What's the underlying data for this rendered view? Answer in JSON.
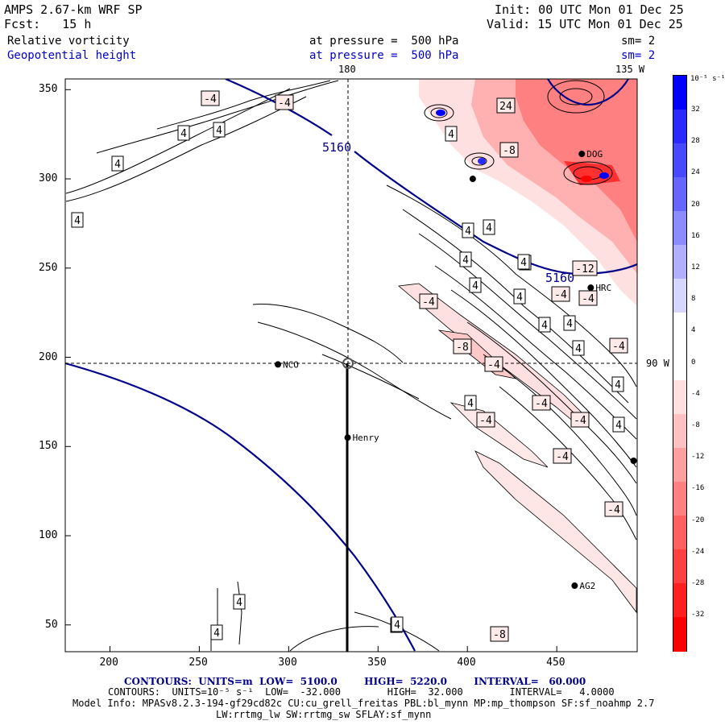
{
  "header": {
    "model": "AMPS 2.67-km WRF SP",
    "init": "Init: 00 UTC Mon 01 Dec 25",
    "fcst": "Fcst:   15 h",
    "valid": "Valid: 15 UTC Mon 01 Dec 25",
    "field1": "Relative vorticity",
    "field1_level": "at pressure =  500 hPa",
    "field1_sm": "sm= 2",
    "field2": "Geopotential height",
    "field2_level": "at pressure =  500 hPa",
    "field2_sm": "sm= 2"
  },
  "map": {
    "meridian_top_left": "180",
    "meridian_top_right": "135 W",
    "meridian_right": "90 W",
    "x_ticks": [
      "200",
      "250",
      "300",
      "350",
      "400",
      "450"
    ],
    "y_ticks": [
      "350",
      "300",
      "250",
      "200",
      "150",
      "100",
      "50"
    ],
    "stations": [
      {
        "name": "NCO",
        "x": 294,
        "y": 196
      },
      {
        "name": "Henry",
        "x": 333,
        "y": 155
      },
      {
        "name": "HRC",
        "x": 469,
        "y": 239
      },
      {
        "name": "DOG",
        "x": 464,
        "y": 314
      },
      {
        "name": "AG2",
        "x": 460,
        "y": 72
      },
      {
        "name": "",
        "x": 403,
        "y": 300
      },
      {
        "name": "",
        "x": 493,
        "y": 142
      }
    ],
    "height_labels": [
      "5160",
      "5160"
    ],
    "vort_labels_positive": [
      "4",
      "4",
      "4",
      "4",
      "4",
      "4",
      "4",
      "4",
      "4",
      "4",
      "4",
      "4",
      "4",
      "4",
      "4",
      "4",
      "4",
      "4",
      "4",
      "4",
      "4",
      "4"
    ],
    "vort_labels_negative": [
      "-4",
      "-4",
      "-4",
      "-4",
      "-4",
      "-4",
      "-4",
      "-4",
      "-4",
      "-4",
      "-4",
      "-4",
      "-8",
      "-8",
      "-8",
      "-12",
      "24"
    ]
  },
  "colorbar": {
    "unit_label": "10⁻⁵ s⁻¹",
    "ticks": [
      "32",
      "28",
      "24",
      "20",
      "16",
      "12",
      "8",
      "4",
      "0",
      "-4",
      "-8",
      "-12",
      "-16",
      "-20",
      "-24",
      "-28",
      "-32"
    ],
    "colors": [
      "#0000ff",
      "#2a2aff",
      "#4848ff",
      "#6666ff",
      "#8c8cff",
      "#b0b0ff",
      "#d6d6ff",
      "#ffffff",
      "#ffffff",
      "#ffe0e0",
      "#ffc2c2",
      "#ffa0a0",
      "#ff8080",
      "#ff6060",
      "#ff4040",
      "#ff2020",
      "#ff0000"
    ]
  },
  "footer": {
    "contours1": "CONTOURS:  UNITS=m  LOW=  5100.0        HIGH=  5220.0        INTERVAL=   60.000",
    "contours2": "CONTOURS:  UNITS=10⁻⁵ s⁻¹  LOW=  -32.000        HIGH=  32.000        INTERVAL=   4.0000",
    "model_info": "Model Info: MPASv8.2.3-194-gf29cd82c CU:cu_grell_freitas PBL:bl_mynn MP:mp_thompson SF:sf_noahmp 2.7",
    "model_info2": "LW:rrtmg_lw SW:rrtmg_sw SFLAY:sf_mynn"
  }
}
